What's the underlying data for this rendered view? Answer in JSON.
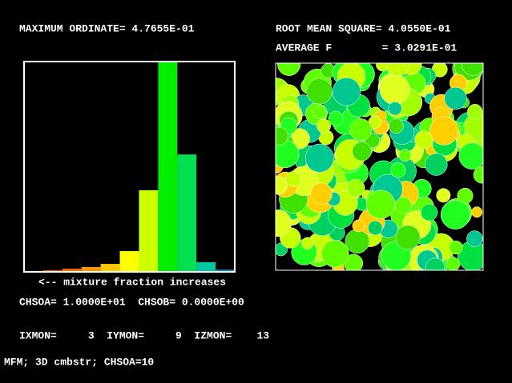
{
  "header": {
    "max_ordinate": "MAXIMUM ORDINATE= 4.7655E-01",
    "rms": "ROOT MEAN SQUARE= 4.0550E-01",
    "average": "AVERAGE F        = 3.0291E-01"
  },
  "histogram": {
    "values": [
      0.002,
      0.004,
      0.007,
      0.011,
      0.018,
      0.047,
      0.185,
      0.47655,
      0.266,
      0.022,
      0.005
    ],
    "colors": [
      "#ff2000",
      "#ff4800",
      "#ff7000",
      "#ff9800",
      "#ffc800",
      "#ffff00",
      "#ccff00",
      "#00ee00",
      "#00e050",
      "#00c8a0",
      "#0090e0"
    ],
    "caption": "<-- mixture fraction increases"
  },
  "footer": {
    "chso": "CHSOA= 1.0000E+01  CHSOB= 0.0000E+00",
    "monitor": "IXMON=     3  IYMON=     9  IZMON=    13",
    "status": "MFM; 3D cmbstr; CHSOA=10"
  }
}
